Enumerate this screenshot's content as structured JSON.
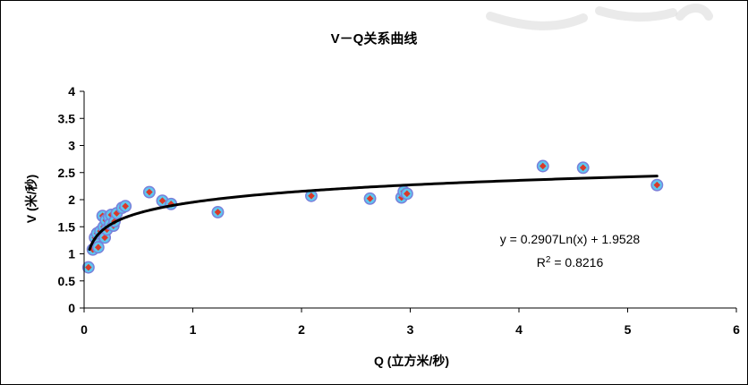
{
  "chart_data": {
    "type": "scatter",
    "title": "V－Q关系曲线",
    "xlabel": "Q (立方米/秒)",
    "ylabel": "V (米/秒)",
    "xlim": [
      0,
      6
    ],
    "ylim": [
      0,
      4
    ],
    "xticks": [
      "0",
      "1",
      "2",
      "3",
      "4",
      "5",
      "6"
    ],
    "yticks": [
      "0",
      "0.5",
      "1",
      "1.5",
      "2",
      "2.5",
      "3",
      "3.5",
      "4"
    ],
    "grid": false,
    "legend": "none",
    "points": [
      {
        "x": 0.04,
        "y": 0.75
      },
      {
        "x": 0.08,
        "y": 1.08
      },
      {
        "x": 0.1,
        "y": 1.3
      },
      {
        "x": 0.12,
        "y": 1.38
      },
      {
        "x": 0.13,
        "y": 1.12
      },
      {
        "x": 0.15,
        "y": 1.42
      },
      {
        "x": 0.17,
        "y": 1.7
      },
      {
        "x": 0.18,
        "y": 1.5
      },
      {
        "x": 0.19,
        "y": 1.3
      },
      {
        "x": 0.2,
        "y": 1.62
      },
      {
        "x": 0.21,
        "y": 1.45
      },
      {
        "x": 0.23,
        "y": 1.68
      },
      {
        "x": 0.24,
        "y": 1.55
      },
      {
        "x": 0.25,
        "y": 1.72
      },
      {
        "x": 0.27,
        "y": 1.52
      },
      {
        "x": 0.28,
        "y": 1.6
      },
      {
        "x": 0.3,
        "y": 1.75
      },
      {
        "x": 0.35,
        "y": 1.85
      },
      {
        "x": 0.38,
        "y": 1.88
      },
      {
        "x": 0.6,
        "y": 2.14
      },
      {
        "x": 0.72,
        "y": 1.98
      },
      {
        "x": 0.8,
        "y": 1.92
      },
      {
        "x": 1.23,
        "y": 1.77
      },
      {
        "x": 2.09,
        "y": 2.07
      },
      {
        "x": 2.63,
        "y": 2.02
      },
      {
        "x": 2.92,
        "y": 2.04
      },
      {
        "x": 2.94,
        "y": 2.15
      },
      {
        "x": 2.97,
        "y": 2.11
      },
      {
        "x": 4.22,
        "y": 2.62
      },
      {
        "x": 4.59,
        "y": 2.59
      },
      {
        "x": 5.27,
        "y": 2.27
      }
    ],
    "trendline": {
      "type": "log",
      "a": 0.2907,
      "b": 1.9528,
      "x_range": [
        0.05,
        5.27
      ],
      "equation_label": "y = 0.2907Ln(x) + 1.9528",
      "r2_prefix": "R",
      "r2_superscript": "2",
      "r2_value": " = 0.8216"
    },
    "colors": {
      "marker_fill": "#5ec8f0",
      "marker_outline": "#7a7fd9",
      "marker_center": "#d83a2a",
      "trendline": "#000000",
      "axis": "#000000"
    }
  }
}
